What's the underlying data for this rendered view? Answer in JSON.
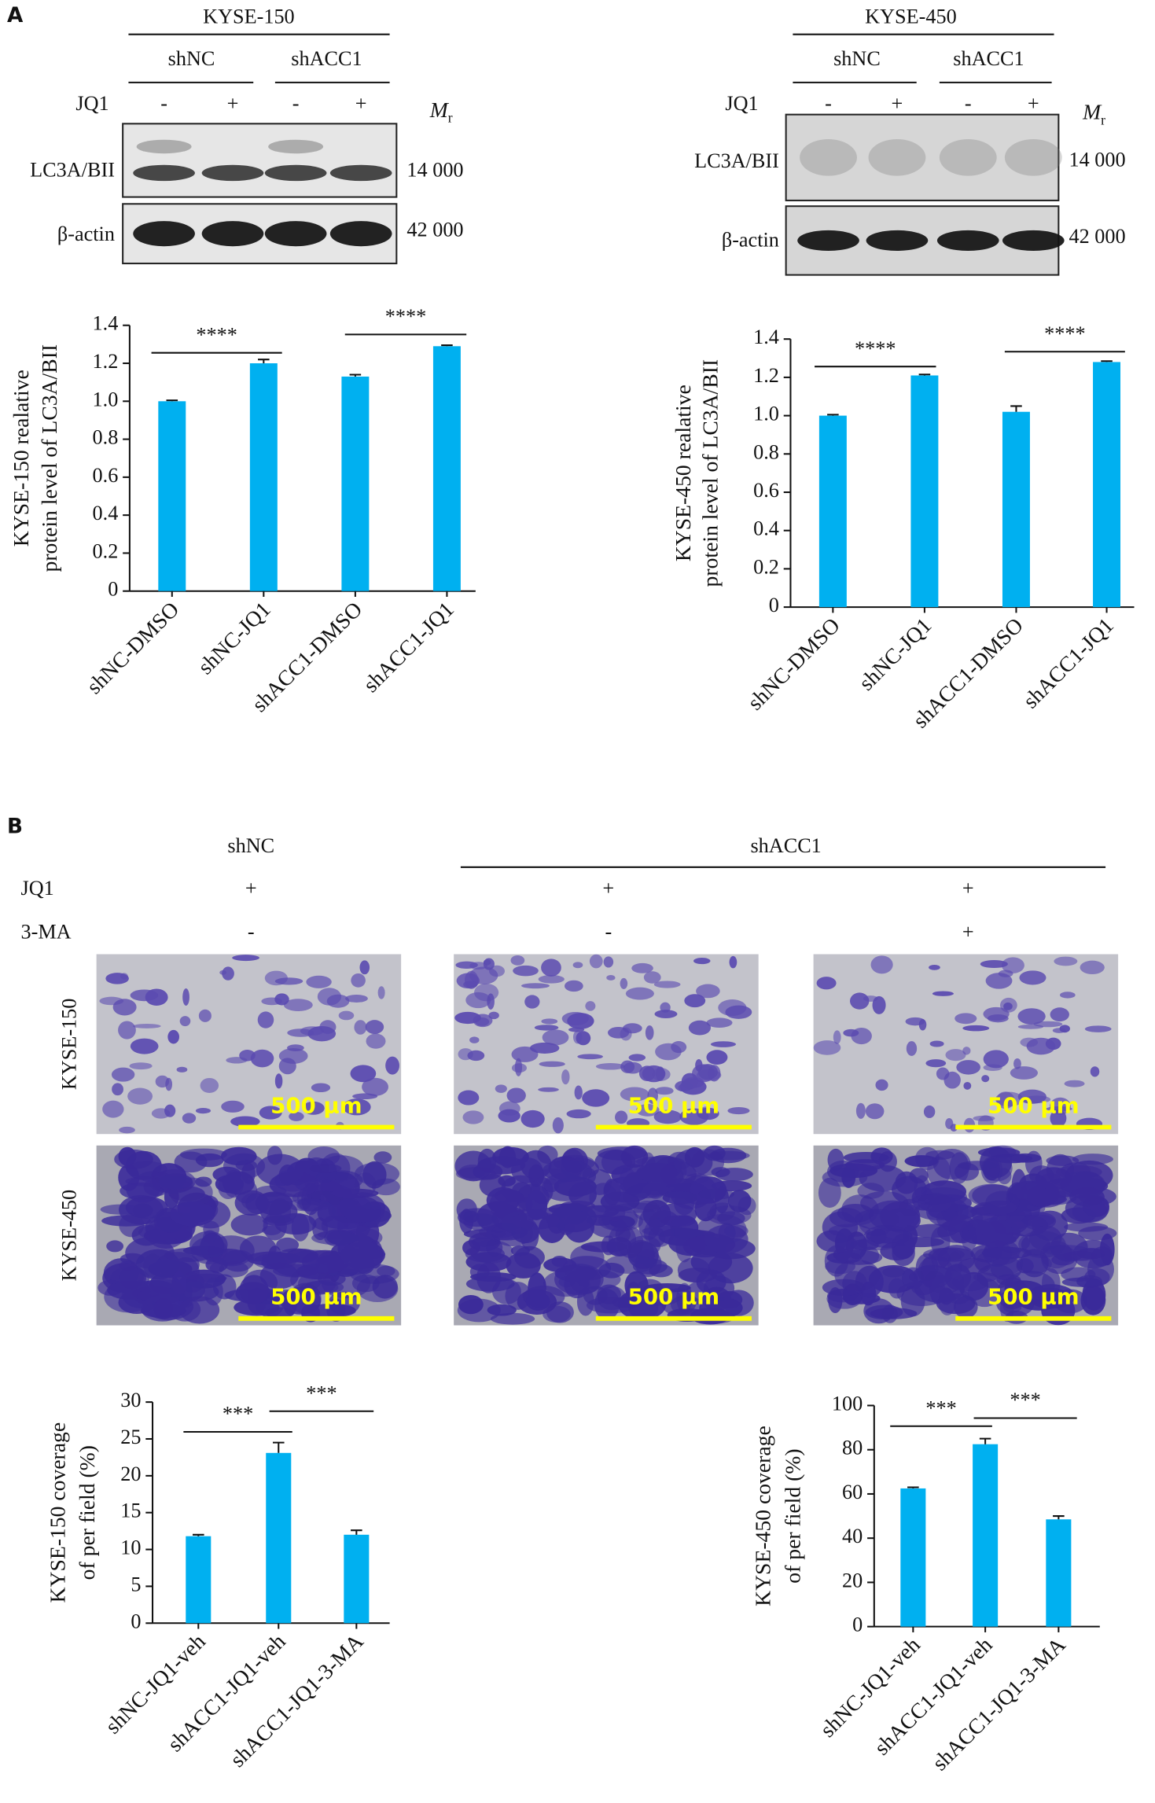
{
  "panel_labels": [
    "A",
    "B"
  ],
  "blots": [
    {
      "cell_line": "KYSE-150",
      "groups": [
        "shNC",
        "shACC1"
      ],
      "treatment": "JQ1",
      "lanes": [
        "-",
        "+",
        "-",
        "+"
      ],
      "mr": "M",
      "mr_sub": "r",
      "rows": [
        {
          "label": "LC3A/BII",
          "mr": "14 000"
        },
        {
          "label": "β-actin",
          "mr": "42 000"
        }
      ]
    },
    {
      "cell_line": "KYSE-450",
      "groups": [
        "shNC",
        "shACC1"
      ],
      "treatment": "JQ1",
      "lanes": [
        "-",
        "+",
        "-",
        "+"
      ],
      "mr": "M",
      "mr_sub": "r",
      "rows": [
        {
          "label": "LC3A/BII",
          "mr": "14 000"
        },
        {
          "label": "β-actin",
          "mr": "42 000"
        }
      ]
    }
  ],
  "migration": {
    "groups": [
      "shNC",
      "shACC1"
    ],
    "conditions": [
      {
        "label": "JQ1",
        "values": [
          "+",
          "+",
          "+"
        ]
      },
      {
        "label": "3-MA",
        "values": [
          "-",
          "-",
          "+"
        ]
      }
    ],
    "cell_lines": [
      "KYSE-150",
      "KYSE-450"
    ],
    "scale_bar": "500 µm"
  },
  "chart_data": [
    {
      "type": "bar",
      "y_label": [
        "KYSE-150 realative",
        "protein level of LC3A/BII"
      ],
      "categories": [
        "shNC-DMSO",
        "shNC-JQ1",
        "shACC1-DMSO",
        "shACC1-JQ1"
      ],
      "values": [
        1.0,
        1.2,
        1.13,
        1.29
      ],
      "errors": [
        0.005,
        0.02,
        0.01,
        0.005
      ],
      "color": "#00b0f0",
      "ylim": [
        0,
        1.4
      ],
      "yticks": [
        0,
        0.2,
        0.4,
        0.6,
        0.8,
        {
          "value": 1,
          "label": "1.0"
        },
        1.2,
        1.4
      ],
      "annotations": [
        "****",
        "****"
      ]
    },
    {
      "type": "bar",
      "y_label": [
        "KYSE-450 realative",
        "protein level of LC3A/BII"
      ],
      "categories": [
        "shNC-DMSO",
        "shNC-JQ1",
        "shACC1-DMSO",
        "shACC1-JQ1"
      ],
      "values": [
        1.0,
        1.21,
        1.02,
        1.28
      ],
      "errors": [
        0.005,
        0.005,
        0.03,
        0.005
      ],
      "color": "#00b0f0",
      "ylim": [
        0,
        1.4
      ],
      "yticks": [
        0,
        0.2,
        0.4,
        0.6,
        0.8,
        {
          "value": 1,
          "label": "1.0"
        },
        1.2,
        1.4
      ],
      "annotations": [
        "****",
        "****"
      ]
    },
    {
      "type": "bar",
      "y_label": [
        "KYSE-150 coverage",
        "of per field (%)"
      ],
      "categories": [
        "shNC-JQ1-veh",
        "shACC1-JQ1-veh",
        "shACC1-JQ1-3-MA"
      ],
      "values": [
        11.8,
        23.1,
        12.0
      ],
      "errors": [
        0.2,
        1.4,
        0.6
      ],
      "color": "#00b0f0",
      "ylim": [
        0,
        30
      ],
      "yticks": [
        0,
        5,
        10,
        15,
        20,
        25,
        30
      ],
      "annotations": [
        "***",
        "***"
      ]
    },
    {
      "type": "bar",
      "y_label": [
        "KYSE-450 coverage",
        "of per field (%)"
      ],
      "categories": [
        "shNC-JQ1-veh",
        "shACC1-JQ1-veh",
        "shACC1-JQ1-3-MA"
      ],
      "values": [
        62.5,
        82.5,
        48.5
      ],
      "errors": [
        0.5,
        2.5,
        1.5
      ],
      "color": "#00b0f0",
      "ylim": [
        0,
        100
      ],
      "yticks": [
        0,
        20,
        40,
        60,
        80,
        100
      ],
      "annotations": [
        "***",
        "***"
      ]
    }
  ]
}
